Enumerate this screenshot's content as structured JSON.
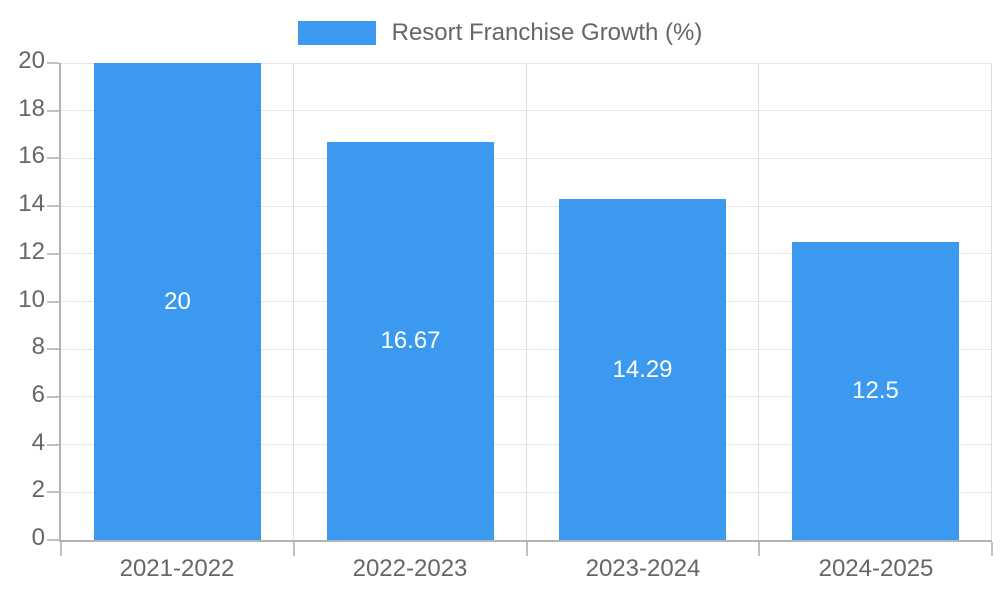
{
  "legend": {
    "label": "Resort Franchise Growth (%)"
  },
  "chart_data": {
    "type": "bar",
    "title": "Resort Franchise Growth (%)",
    "categories": [
      "2021-2022",
      "2022-2023",
      "2023-2024",
      "2024-2025"
    ],
    "values": [
      20,
      16.67,
      14.29,
      12.5
    ],
    "bar_labels": [
      "20",
      "16.67",
      "14.29",
      "12.5"
    ],
    "xlabel": "",
    "ylabel": "",
    "ylim": [
      0,
      20
    ],
    "ytick_step": 2,
    "ytick_labels": [
      "0",
      "2",
      "4",
      "6",
      "8",
      "10",
      "12",
      "14",
      "16",
      "18",
      "20"
    ],
    "grid": "horizontal lines at each y tick, vertical lines at category boundaries",
    "legend_position": "top-center",
    "colors": {
      "bar": "#3b99f0",
      "bar_label": "#ffffff",
      "axis": "#b3b3b3",
      "grid_h": "#e6e6e6",
      "grid_v": "#dcdcdc",
      "tick": "#c0c0c0",
      "tick_label": "#666666",
      "legend_text": "#666666",
      "background": "#ffffff"
    }
  }
}
